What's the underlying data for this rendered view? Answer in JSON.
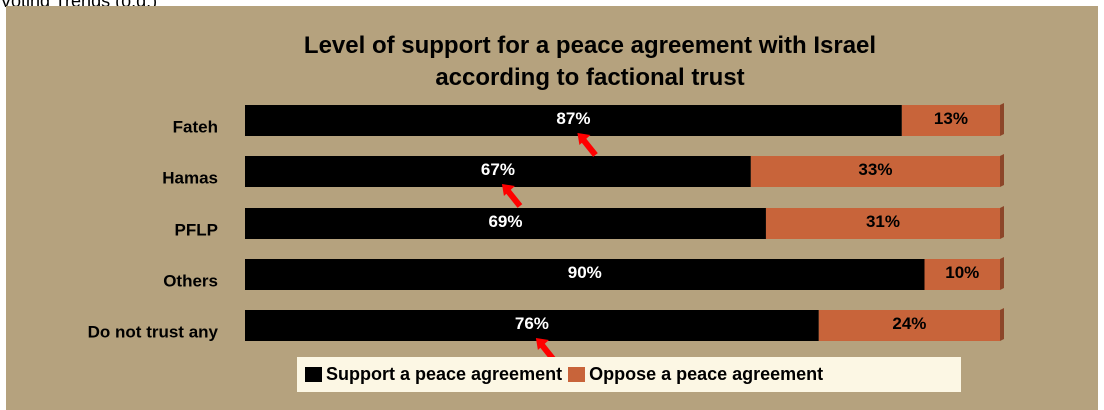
{
  "page": {
    "top_caption": "Voting Trends (o.d.)"
  },
  "colors": {
    "background": "#b5a27e",
    "support": "#000000",
    "oppose": "#c8643a",
    "legend_bg": "#fcf7e4",
    "arrow": "#ff0000"
  },
  "chart_data": {
    "type": "bar",
    "orientation": "horizontal",
    "stacked": true,
    "title": "Level of support for a peace agreement with Israel according to factional trust",
    "title_lines": [
      "Level of support for a peace agreement with Israel",
      "according to factional trust"
    ],
    "categories": [
      "Fateh",
      "Hamas",
      "PFLP",
      "Others",
      "Do not trust any"
    ],
    "series": [
      {
        "name": "Support a peace agreement",
        "values": [
          87,
          67,
          69,
          90,
          76
        ],
        "color": "#000000",
        "label_color": "#ffffff"
      },
      {
        "name": "Oppose a peace agreement",
        "values": [
          13,
          33,
          31,
          10,
          24
        ],
        "color": "#c8643a",
        "label_color": "#000000"
      }
    ],
    "value_suffix": "%",
    "xlim": [
      0,
      100
    ],
    "grid": false,
    "legend_position": "bottom",
    "annotations": [
      {
        "type": "arrow",
        "category": "Fateh",
        "points_to": "87%",
        "color": "#ff0000"
      },
      {
        "type": "arrow",
        "category": "Hamas",
        "points_to": "67%",
        "color": "#ff0000"
      },
      {
        "type": "arrow",
        "category": "Do not trust any",
        "points_to": "76%",
        "color": "#ff0000"
      }
    ]
  }
}
